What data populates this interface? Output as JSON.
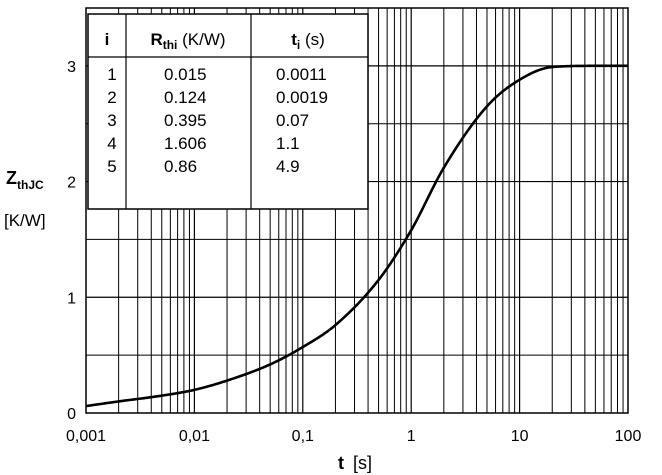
{
  "chart_data": {
    "type": "line",
    "x_scale": "log",
    "grid": true,
    "xlim": [
      0.001,
      100
    ],
    "ylim": [
      0,
      3.5
    ],
    "x_ticks": [
      "0,001",
      "0,01",
      "0,1",
      "1",
      "10",
      "100"
    ],
    "y_ticks": [
      "0",
      "1",
      "2",
      "3"
    ],
    "xlabel": {
      "symbol": "t",
      "unit": "[s]"
    },
    "ylabel": {
      "symbol": "Z",
      "subscript": "thJC",
      "unit": "[K/W]"
    },
    "series": [
      {
        "color": "#000000",
        "x": [
          0.001,
          0.002,
          0.005,
          0.01,
          0.02,
          0.05,
          0.1,
          0.2,
          0.5,
          1,
          2,
          5,
          10,
          20,
          50,
          100
        ],
        "y": [
          0.06,
          0.1,
          0.15,
          0.2,
          0.28,
          0.42,
          0.57,
          0.76,
          1.15,
          1.58,
          2.12,
          2.65,
          2.88,
          2.99,
          3.0,
          3.0
        ]
      }
    ],
    "table": {
      "headers": {
        "i": "i",
        "r_symbol": "R",
        "r_sub": "thi",
        "r_unit": " (K/W)",
        "t_symbol": "t",
        "t_sub": "i",
        "t_unit": " (s)"
      },
      "rows": [
        {
          "i": "1",
          "r": "0.015",
          "t": "0.0011"
        },
        {
          "i": "2",
          "r": "0.124",
          "t": "0.0019"
        },
        {
          "i": "3",
          "r": "0.395",
          "t": "0.07"
        },
        {
          "i": "4",
          "r": "1.606",
          "t": "1.1"
        },
        {
          "i": "5",
          "r": "0.86",
          "t": "4.9"
        }
      ]
    }
  }
}
